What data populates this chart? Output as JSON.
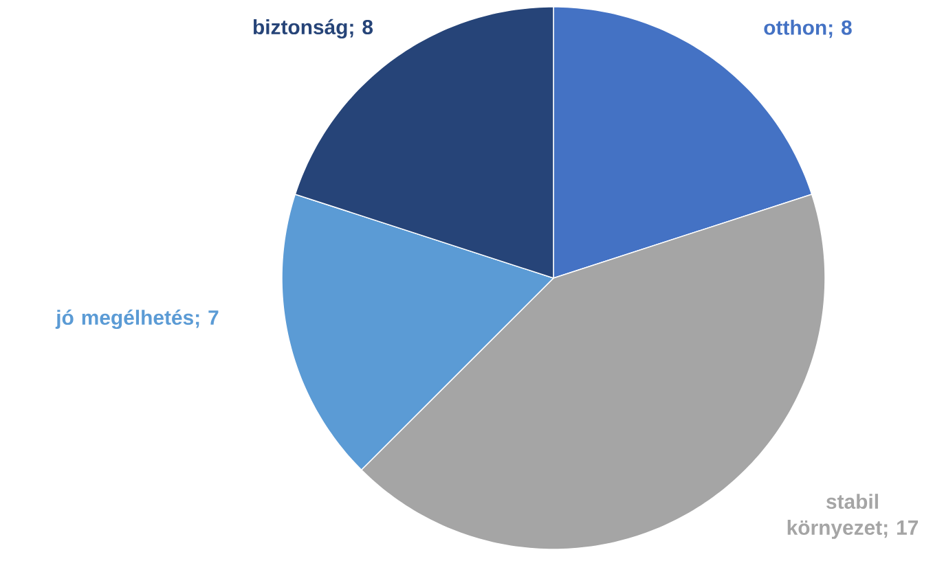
{
  "chart_data": {
    "type": "pie",
    "categories": [
      "otthon",
      "stabil környezet",
      "jó megélhetés",
      "biztonság"
    ],
    "values": [
      8,
      17,
      7,
      8
    ],
    "colors": [
      "#4472c4",
      "#a5a5a5",
      "#5b9bd5",
      "#264478"
    ],
    "value_labels": [
      "; 8",
      "; 17",
      "; 7",
      "; 8"
    ]
  }
}
